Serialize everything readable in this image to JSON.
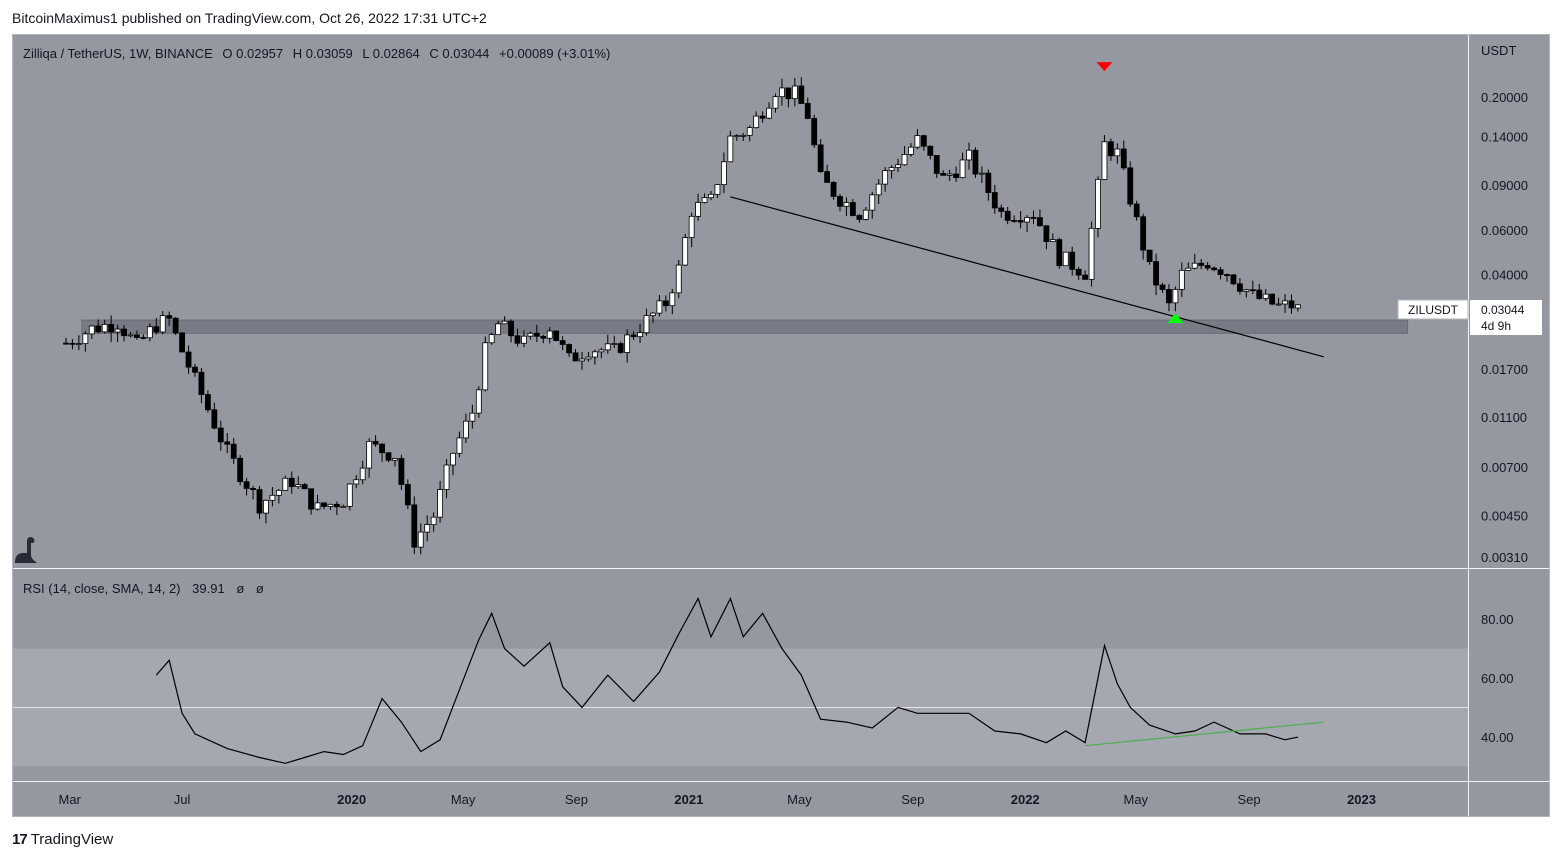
{
  "header": {
    "published_line": "BitcoinMaximus1 published on TradingView.com, Oct 26, 2022 17:31 UTC+2"
  },
  "footer": {
    "brand_text": "TradingView",
    "logo_icon": "tradingview-logo-icon"
  },
  "colors": {
    "chart_bg": "#9598a1",
    "axis_bg": "#9598a1",
    "bull_body": "#ffffff",
    "bear_body": "#000000",
    "support_band": "#787b86",
    "rsi_band": "#a5a8b0",
    "trendline": "#000000",
    "rsi_line": "#000000",
    "rsi_trendline": "#4caf50",
    "top_marker": "#ff0000",
    "bottom_marker": "#00ff00",
    "text": "#131722"
  },
  "main_pane": {
    "legend": {
      "symbol": "Zilliqa / TetherUS, 1W, BINANCE",
      "o_label": "O",
      "o_value": "0.02957",
      "h_label": "H",
      "h_value": "0.03059",
      "l_label": "L",
      "l_value": "0.02864",
      "c_label": "C",
      "c_value": "0.03044",
      "change": "+0.00089 (+3.01%)"
    },
    "price_axis_currency": "USDT",
    "price_ticks": [
      "0.20000",
      "0.14000",
      "0.09000",
      "0.06000",
      "0.04000",
      "0.01700",
      "0.01100",
      "0.00700",
      "0.00450",
      "0.00310"
    ],
    "price_tag": {
      "symbol": "ZILUSDT",
      "value": "0.03044",
      "countdown": "4d 9h"
    },
    "watermark_icon": "dinosaur-icon"
  },
  "rsi_pane": {
    "legend": {
      "label": "RSI (14, close, SMA, 14, 2)",
      "value": "39.91",
      "na1": "ø",
      "na2": "ø"
    },
    "ticks": [
      "80.00",
      "60.00",
      "40.00"
    ]
  },
  "time_axis": {
    "labels": [
      "Mar",
      "Jul",
      "2020",
      "May",
      "Sep",
      "2021",
      "May",
      "Sep",
      "2022",
      "May",
      "Sep",
      "2023"
    ]
  },
  "chart_data": [
    {
      "type": "candlestick",
      "title": "Zilliqa / TetherUS, 1W, BINANCE",
      "interval": "1W",
      "y_scale": "log",
      "ylim": [
        0.0028,
        0.28
      ],
      "yticks": [
        0.2,
        0.14,
        0.09,
        0.06,
        0.04,
        0.017,
        0.011,
        0.007,
        0.0045,
        0.0031
      ],
      "x_start": "2019-02-25",
      "grid": false,
      "last": {
        "o": 0.02957,
        "h": 0.03059,
        "l": 0.02864,
        "c": 0.03044
      },
      "close_anchors": [
        [
          "2019-02-25",
          0.0215
        ],
        [
          "2019-03-25",
          0.0245
        ],
        [
          "2019-04-22",
          0.026
        ],
        [
          "2019-05-13",
          0.021
        ],
        [
          "2019-06-03",
          0.0255
        ],
        [
          "2019-06-17",
          0.0265
        ],
        [
          "2019-07-01",
          0.02
        ],
        [
          "2019-07-22",
          0.0135
        ],
        [
          "2019-08-19",
          0.008
        ],
        [
          "2019-09-23",
          0.005
        ],
        [
          "2019-10-28",
          0.0062
        ],
        [
          "2019-11-25",
          0.0048
        ],
        [
          "2019-12-23",
          0.0052
        ],
        [
          "2020-01-20",
          0.0085
        ],
        [
          "2020-02-17",
          0.0078
        ],
        [
          "2020-03-09",
          0.0036
        ],
        [
          "2020-03-30",
          0.0045
        ],
        [
          "2020-04-20",
          0.008
        ],
        [
          "2020-05-11",
          0.0115
        ],
        [
          "2020-05-25",
          0.02
        ],
        [
          "2020-06-08",
          0.0255
        ],
        [
          "2020-07-06",
          0.0215
        ],
        [
          "2020-08-03",
          0.025
        ],
        [
          "2020-08-24",
          0.0185
        ],
        [
          "2020-09-14",
          0.0205
        ],
        [
          "2020-10-12",
          0.02
        ],
        [
          "2020-11-09",
          0.025
        ],
        [
          "2020-12-07",
          0.031
        ],
        [
          "2020-12-21",
          0.042
        ],
        [
          "2021-01-04",
          0.072
        ],
        [
          "2021-01-25",
          0.078
        ],
        [
          "2021-02-15",
          0.138
        ],
        [
          "2021-03-08",
          0.15
        ],
        [
          "2021-04-05",
          0.215
        ],
        [
          "2021-04-26",
          0.205
        ],
        [
          "2021-05-10",
          0.17
        ],
        [
          "2021-05-24",
          0.095
        ],
        [
          "2021-06-14",
          0.08
        ],
        [
          "2021-07-05",
          0.07
        ],
        [
          "2021-08-02",
          0.1
        ],
        [
          "2021-09-06",
          0.135
        ],
        [
          "2021-10-04",
          0.095
        ],
        [
          "2021-11-01",
          0.115
        ],
        [
          "2021-12-06",
          0.07
        ],
        [
          "2022-01-10",
          0.07
        ],
        [
          "2022-02-07",
          0.047
        ],
        [
          "2022-03-07",
          0.041
        ],
        [
          "2022-03-28",
          0.13
        ],
        [
          "2022-04-11",
          0.12
        ],
        [
          "2022-04-25",
          0.08
        ],
        [
          "2022-05-16",
          0.042
        ],
        [
          "2022-06-06",
          0.03
        ],
        [
          "2022-06-20",
          0.04
        ],
        [
          "2022-07-18",
          0.045
        ],
        [
          "2022-08-08",
          0.041
        ],
        [
          "2022-09-05",
          0.033
        ],
        [
          "2022-10-03",
          0.03
        ],
        [
          "2022-10-24",
          0.03044
        ]
      ],
      "annotations": [
        {
          "kind": "support-zone",
          "low": 0.0235,
          "high": 0.0265,
          "from": "2019-03-25",
          "to": "2023-02-20"
        },
        {
          "kind": "descending-trendline",
          "from": [
            "2021-02-15",
            0.081
          ],
          "to": [
            "2022-11-21",
            0.019
          ]
        },
        {
          "kind": "top-marker",
          "date": "2022-03-28",
          "price": 0.26
        },
        {
          "kind": "bottom-marker",
          "date": "2022-06-13",
          "price": 0.0265
        }
      ]
    },
    {
      "type": "line",
      "title": "RSI (14, close, SMA, 14, 2)",
      "ylim": [
        25,
        95
      ],
      "yticks": [
        80,
        60,
        40
      ],
      "band": [
        30,
        70
      ],
      "midline": 50,
      "series": [
        {
          "name": "RSI",
          "points": [
            [
              "2019-06-03",
              61
            ],
            [
              "2019-06-17",
              66
            ],
            [
              "2019-07-01",
              48
            ],
            [
              "2019-07-15",
              41
            ],
            [
              "2019-08-19",
              36
            ],
            [
              "2019-09-23",
              33
            ],
            [
              "2019-10-21",
              31
            ],
            [
              "2019-11-11",
              33
            ],
            [
              "2019-12-02",
              35
            ],
            [
              "2019-12-23",
              34
            ],
            [
              "2020-01-13",
              37
            ],
            [
              "2020-02-03",
              53
            ],
            [
              "2020-02-24",
              45
            ],
            [
              "2020-03-16",
              35
            ],
            [
              "2020-04-06",
              39
            ],
            [
              "2020-04-27",
              56
            ],
            [
              "2020-05-18",
              73
            ],
            [
              "2020-06-01",
              82
            ],
            [
              "2020-06-15",
              70
            ],
            [
              "2020-07-06",
              64
            ],
            [
              "2020-08-03",
              72
            ],
            [
              "2020-08-17",
              57
            ],
            [
              "2020-09-07",
              50
            ],
            [
              "2020-10-05",
              61
            ],
            [
              "2020-11-02",
              52
            ],
            [
              "2020-11-30",
              62
            ],
            [
              "2020-12-21",
              75
            ],
            [
              "2021-01-11",
              87
            ],
            [
              "2021-01-25",
              74
            ],
            [
              "2021-02-15",
              87
            ],
            [
              "2021-03-01",
              74
            ],
            [
              "2021-03-22",
              82
            ],
            [
              "2021-04-12",
              70
            ],
            [
              "2021-05-03",
              61
            ],
            [
              "2021-05-24",
              46
            ],
            [
              "2021-06-21",
              45
            ],
            [
              "2021-07-19",
              43
            ],
            [
              "2021-08-16",
              50
            ],
            [
              "2021-09-06",
              48
            ],
            [
              "2021-10-04",
              48
            ],
            [
              "2021-11-01",
              48
            ],
            [
              "2021-11-29",
              42
            ],
            [
              "2021-12-27",
              41
            ],
            [
              "2022-01-24",
              38
            ],
            [
              "2022-02-14",
              42
            ],
            [
              "2022-03-07",
              38
            ],
            [
              "2022-03-21",
              60
            ],
            [
              "2022-03-28",
              71
            ],
            [
              "2022-04-11",
              58
            ],
            [
              "2022-04-25",
              50
            ],
            [
              "2022-05-16",
              44
            ],
            [
              "2022-06-13",
              41
            ],
            [
              "2022-07-04",
              42
            ],
            [
              "2022-07-25",
              45
            ],
            [
              "2022-08-22",
              41
            ],
            [
              "2022-09-19",
              41
            ],
            [
              "2022-10-10",
              39
            ],
            [
              "2022-10-24",
              39.91
            ]
          ]
        }
      ],
      "annotations": [
        {
          "kind": "rising-trendline",
          "from": [
            "2022-03-07",
            37
          ],
          "to": [
            "2022-11-21",
            45
          ]
        }
      ]
    }
  ]
}
